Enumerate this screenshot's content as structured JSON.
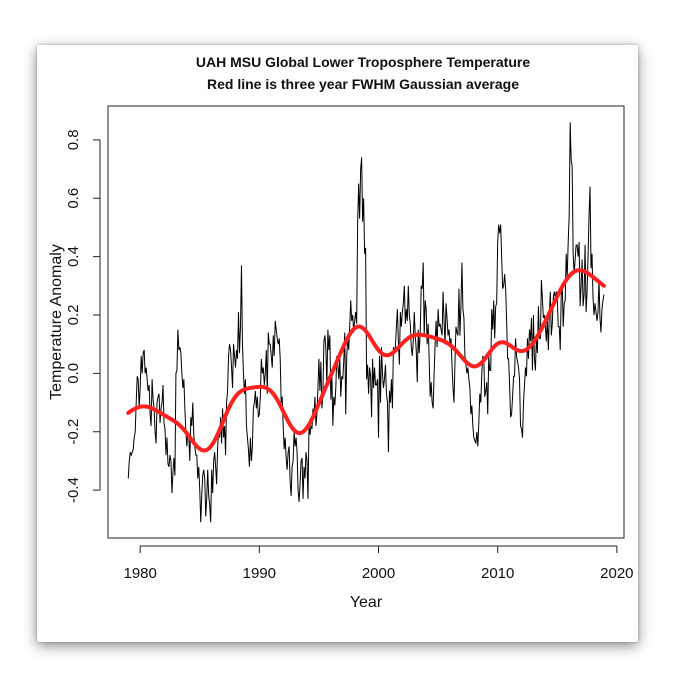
{
  "chart_data": {
    "type": "line",
    "title": "UAH MSU Global Lower Troposphere Temperature",
    "subtitle": "Red line is three year FWHM Gaussian average",
    "xlabel": "Year",
    "ylabel": "Temperature Anomaly",
    "xlim": [
      1977.3,
      2020.6
    ],
    "ylim": [
      -0.564,
      0.916
    ],
    "x_ticks": [
      "1980",
      "1990",
      "2000",
      "2010",
      "2020"
    ],
    "y_ticks": [
      "-0.4",
      "-0.2",
      "0.0",
      "0.2",
      "0.4",
      "0.6",
      "0.8"
    ],
    "grid": false,
    "start_year": 1979,
    "frequency": "monthly",
    "series": [
      {
        "color": "#000000",
        "values": [
          -0.36,
          -0.3,
          -0.27,
          -0.28,
          -0.27,
          -0.26,
          -0.22,
          -0.2,
          -0.1,
          -0.01,
          -0.02,
          -0.12,
          -0.05,
          0.06,
          0.0,
          0.07,
          0.08,
          0.0,
          0.02,
          -0.02,
          -0.06,
          -0.04,
          -0.14,
          -0.18,
          -0.02,
          -0.09,
          -0.12,
          -0.2,
          -0.24,
          -0.1,
          -0.08,
          -0.07,
          -0.17,
          -0.12,
          -0.1,
          -0.04,
          -0.17,
          -0.19,
          -0.28,
          -0.22,
          -0.31,
          -0.32,
          -0.28,
          -0.3,
          -0.41,
          -0.34,
          -0.29,
          -0.35,
          0.0,
          0.01,
          0.15,
          0.08,
          0.09,
          0.07,
          0.0,
          -0.05,
          -0.02,
          -0.12,
          -0.2,
          -0.25,
          -0.2,
          -0.22,
          -0.3,
          -0.15,
          -0.18,
          -0.1,
          -0.21,
          -0.25,
          -0.28,
          -0.28,
          -0.36,
          -0.32,
          -0.4,
          -0.51,
          -0.42,
          -0.35,
          -0.33,
          -0.36,
          -0.49,
          -0.43,
          -0.33,
          -0.42,
          -0.45,
          -0.51,
          -0.33,
          -0.41,
          -0.3,
          -0.27,
          -0.32,
          -0.38,
          -0.25,
          -0.2,
          -0.22,
          -0.15,
          -0.24,
          -0.12,
          -0.22,
          -0.18,
          -0.28,
          -0.1,
          -0.06,
          0.06,
          0.1,
          0.08,
          0.02,
          -0.05,
          0.1,
          0.06,
          0.02,
          0.08,
          0.05,
          0.21,
          0.07,
          0.16,
          0.37,
          0.1,
          0.0,
          -0.07,
          -0.02,
          -0.18,
          -0.22,
          -0.26,
          -0.32,
          -0.22,
          -0.3,
          -0.25,
          -0.12,
          -0.1,
          -0.06,
          -0.12,
          -0.08,
          -0.15,
          -0.14,
          -0.08,
          0.05,
          0.0,
          0.02,
          -0.04,
          0.0,
          0.08,
          -0.07,
          0.14,
          0.1,
          0.1,
          0.06,
          0.02,
          0.13,
          0.06,
          0.18,
          0.15,
          0.12,
          0.1,
          0.12,
          0.05,
          -0.1,
          -0.08,
          -0.18,
          -0.26,
          -0.22,
          -0.29,
          -0.33,
          -0.27,
          -0.25,
          -0.37,
          -0.42,
          -0.32,
          -0.3,
          -0.2,
          -0.25,
          -0.22,
          -0.27,
          -0.4,
          -0.44,
          -0.38,
          -0.3,
          -0.29,
          -0.43,
          -0.32,
          -0.36,
          -0.27,
          -0.3,
          -0.43,
          -0.18,
          -0.21,
          -0.18,
          -0.19,
          -0.12,
          -0.15,
          -0.08,
          -0.18,
          -0.14,
          -0.05,
          0.05,
          -0.06,
          0.04,
          -0.12,
          -0.07,
          0.11,
          0.13,
          0.08,
          -0.04,
          0.15,
          0.08,
          0.13,
          -0.09,
          0.0,
          -0.18,
          -0.08,
          -0.11,
          -0.05,
          0.06,
          0.03,
          -0.02,
          0.05,
          -0.08,
          -0.01,
          -0.02,
          0.04,
          0.14,
          -0.14,
          0.06,
          0.12,
          0.08,
          0.16,
          0.25,
          0.18,
          0.2,
          0.14,
          0.18,
          0.21,
          0.17,
          0.52,
          0.65,
          0.53,
          0.7,
          0.74,
          0.52,
          0.6,
          0.41,
          0.43,
          -0.02,
          0.03,
          -0.07,
          0.02,
          -0.01,
          -0.15,
          0.05,
          -0.05,
          0.02,
          -0.04,
          -0.04,
          -0.02,
          -0.22,
          0.06,
          -0.1,
          0.09,
          0.0,
          -0.05,
          -0.02,
          0.03,
          -0.07,
          -0.1,
          -0.27,
          -0.06,
          -0.1,
          -0.02,
          -0.12,
          0.09,
          0.08,
          0.09,
          0.16,
          0.22,
          0.11,
          0.03,
          0.21,
          0.16,
          0.21,
          0.24,
          0.3,
          0.17,
          0.22,
          0.18,
          0.3,
          0.2,
          0.17,
          0.09,
          0.06,
          0.11,
          0.21,
          0.13,
          0.08,
          -0.03,
          0.15,
          0.07,
          0.14,
          0.3,
          0.29,
          0.38,
          0.13,
          0.25,
          0.22,
          0.1,
          0.17,
          0.05,
          -0.08,
          -0.03,
          -0.1,
          -0.12,
          0.0,
          0.1,
          0.18,
          0.09,
          0.22,
          0.16,
          0.17,
          0.15,
          0.13,
          0.28,
          0.18,
          0.1,
          0.24,
          0.19,
          0.13,
          0.15,
          0.1,
          0.12,
          0.03,
          -0.05,
          -0.1,
          0.04,
          0.16,
          0.14,
          0.13,
          0.29,
          0.13,
          0.23,
          0.38,
          0.22,
          0.19,
          0.06,
          0.03,
          0.0,
          0.02,
          -0.02,
          -0.05,
          -0.14,
          -0.11,
          -0.18,
          -0.22,
          -0.23,
          -0.24,
          -0.2,
          -0.25,
          -0.17,
          -0.07,
          -0.1,
          0.0,
          0.06,
          0.05,
          -0.08,
          -0.06,
          -0.03,
          -0.14,
          0.06,
          0.01,
          0.01,
          0.22,
          0.15,
          0.25,
          0.12,
          0.23,
          0.24,
          0.45,
          0.51,
          0.48,
          0.51,
          0.4,
          0.29,
          0.3,
          0.34,
          0.29,
          0.18,
          0.05,
          0.05,
          -0.04,
          -0.15,
          -0.14,
          -0.08,
          -0.01,
          -0.01,
          0.12,
          0.06,
          0.04,
          0.02,
          -0.02,
          -0.18,
          -0.19,
          -0.22,
          -0.1,
          -0.04,
          0.02,
          -0.01,
          0.12,
          0.05,
          0.15,
          0.11,
          0.19,
          0.01,
          0.2,
          0.05,
          0.01,
          0.13,
          0.07,
          0.23,
          0.12,
          0.12,
          0.32,
          0.26,
          0.19,
          0.2,
          0.16,
          0.11,
          0.19,
          0.08,
          0.2,
          0.28,
          0.13,
          0.17,
          0.26,
          0.28,
          0.26,
          0.28,
          0.26,
          0.16,
          0.16,
          0.08,
          0.27,
          0.31,
          0.16,
          0.24,
          0.25,
          0.41,
          0.33,
          0.45,
          0.54,
          0.86,
          0.73,
          0.71,
          0.41,
          0.34,
          0.39,
          0.44,
          0.44,
          0.4,
          0.45,
          0.23,
          0.3,
          0.39,
          0.23,
          0.27,
          0.44,
          0.21,
          0.28,
          0.4,
          0.54,
          0.64,
          0.36,
          0.41,
          0.26,
          0.2,
          0.24,
          0.21,
          0.18,
          0.21,
          0.32,
          0.19,
          0.14,
          0.22,
          0.25,
          0.27
        ]
      },
      {
        "color": "#ff2020",
        "smoothing": "three year FWHM Gaussian average"
      }
    ]
  }
}
